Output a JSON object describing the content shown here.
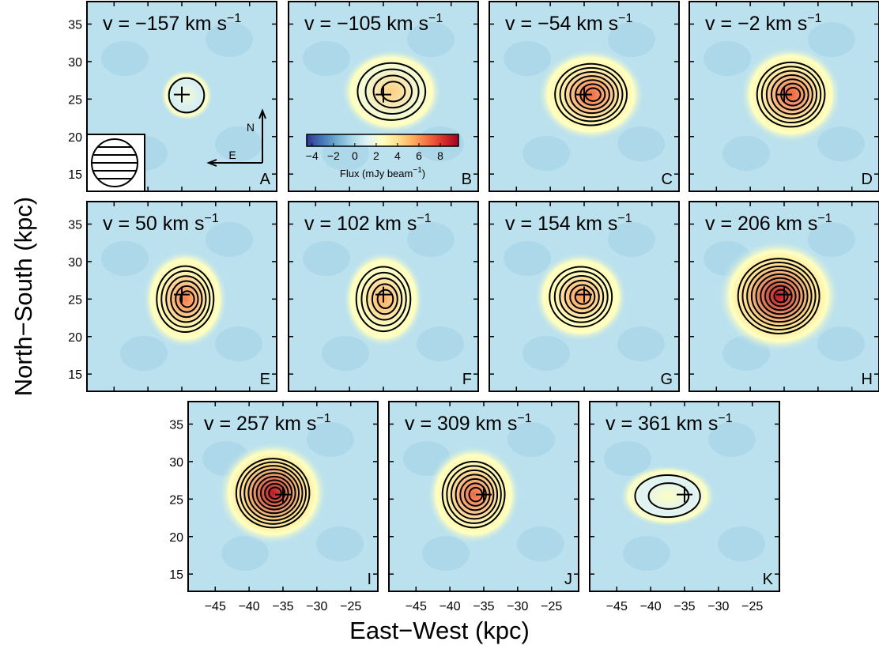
{
  "chart_data": {
    "type": "channel-maps",
    "x_label": "East−West (kpc)",
    "y_label": "North−South (kpc)",
    "xlim": [
      -49,
      -21
    ],
    "ylim": [
      12.7,
      38
    ],
    "xticks": [
      {
        "value": -45,
        "label": "−45"
      },
      {
        "value": -40,
        "label": "−40"
      },
      {
        "value": -35,
        "label": "−35"
      },
      {
        "value": -30,
        "label": "−30"
      },
      {
        "value": -25,
        "label": "−25"
      }
    ],
    "yticks": [
      15,
      20,
      25,
      30,
      35
    ],
    "cross": [
      -35,
      25.6
    ],
    "panels": [
      {
        "label": "v = −157 km s",
        "exp": "−1",
        "letter": "A",
        "center": [
          -34.3,
          25.5
        ],
        "size": [
          2.6,
          2.3
        ],
        "levels": 1,
        "peak": 2
      },
      {
        "label": "v = −105 km s",
        "exp": "−1",
        "letter": "B",
        "center": [
          -33.8,
          26
        ],
        "size": [
          5,
          3.8
        ],
        "levels": 4,
        "peak": 4.5
      },
      {
        "label": "v = −54 km s",
        "exp": "−1",
        "letter": "C",
        "center": [
          -34,
          25.6
        ],
        "size": [
          5.3,
          4.1
        ],
        "levels": 7,
        "peak": 7
      },
      {
        "label": "v = −2 km s",
        "exp": "−1",
        "letter": "D",
        "center": [
          -34,
          25.6
        ],
        "size": [
          5,
          4.3
        ],
        "levels": 7,
        "peak": 7.2
      },
      {
        "label": "v = 50 km s",
        "exp": "−1",
        "letter": "E",
        "center": [
          -34.5,
          25
        ],
        "size": [
          4.2,
          4.4
        ],
        "levels": 6,
        "peak": 6.5
      },
      {
        "label": "v = 102 km s",
        "exp": "−1",
        "letter": "F",
        "center": [
          -35,
          25
        ],
        "size": [
          4,
          4.3
        ],
        "levels": 5,
        "peak": 5.5
      },
      {
        "label": "v = 154 km s",
        "exp": "−1",
        "letter": "G",
        "center": [
          -35.5,
          25.3
        ],
        "size": [
          4.6,
          4
        ],
        "levels": 6,
        "peak": 6
      },
      {
        "label": "v = 206 km s",
        "exp": "−1",
        "letter": "H",
        "center": [
          -35.8,
          25.4
        ],
        "size": [
          6,
          5
        ],
        "levels": 9,
        "peak": 9
      },
      {
        "label": "v = 257 km s",
        "exp": "−1",
        "letter": "I",
        "center": [
          -36.5,
          25.8
        ],
        "size": [
          5.4,
          4.6
        ],
        "levels": 9,
        "peak": 9
      },
      {
        "label": "v = 309 km s",
        "exp": "−1",
        "letter": "J",
        "center": [
          -36.5,
          25.6
        ],
        "size": [
          4.6,
          4.4
        ],
        "levels": 7,
        "peak": 7
      },
      {
        "label": "v = 361 km s",
        "exp": "−1",
        "letter": "K",
        "center": [
          -37.5,
          25.4
        ],
        "size": [
          4.8,
          2.8
        ],
        "levels": 2,
        "peak": 2.5
      }
    ],
    "colorbar": {
      "clim": [
        -4.5,
        9.7
      ],
      "label": "Flux (mJy beam",
      "exp": "−1",
      "close": ")",
      "ticks": [
        {
          "value": -4,
          "label": "−4"
        },
        {
          "value": -2,
          "label": "−2"
        },
        0,
        2,
        4,
        6,
        8
      ]
    },
    "compass": {
      "north": "N",
      "east": "E"
    }
  }
}
